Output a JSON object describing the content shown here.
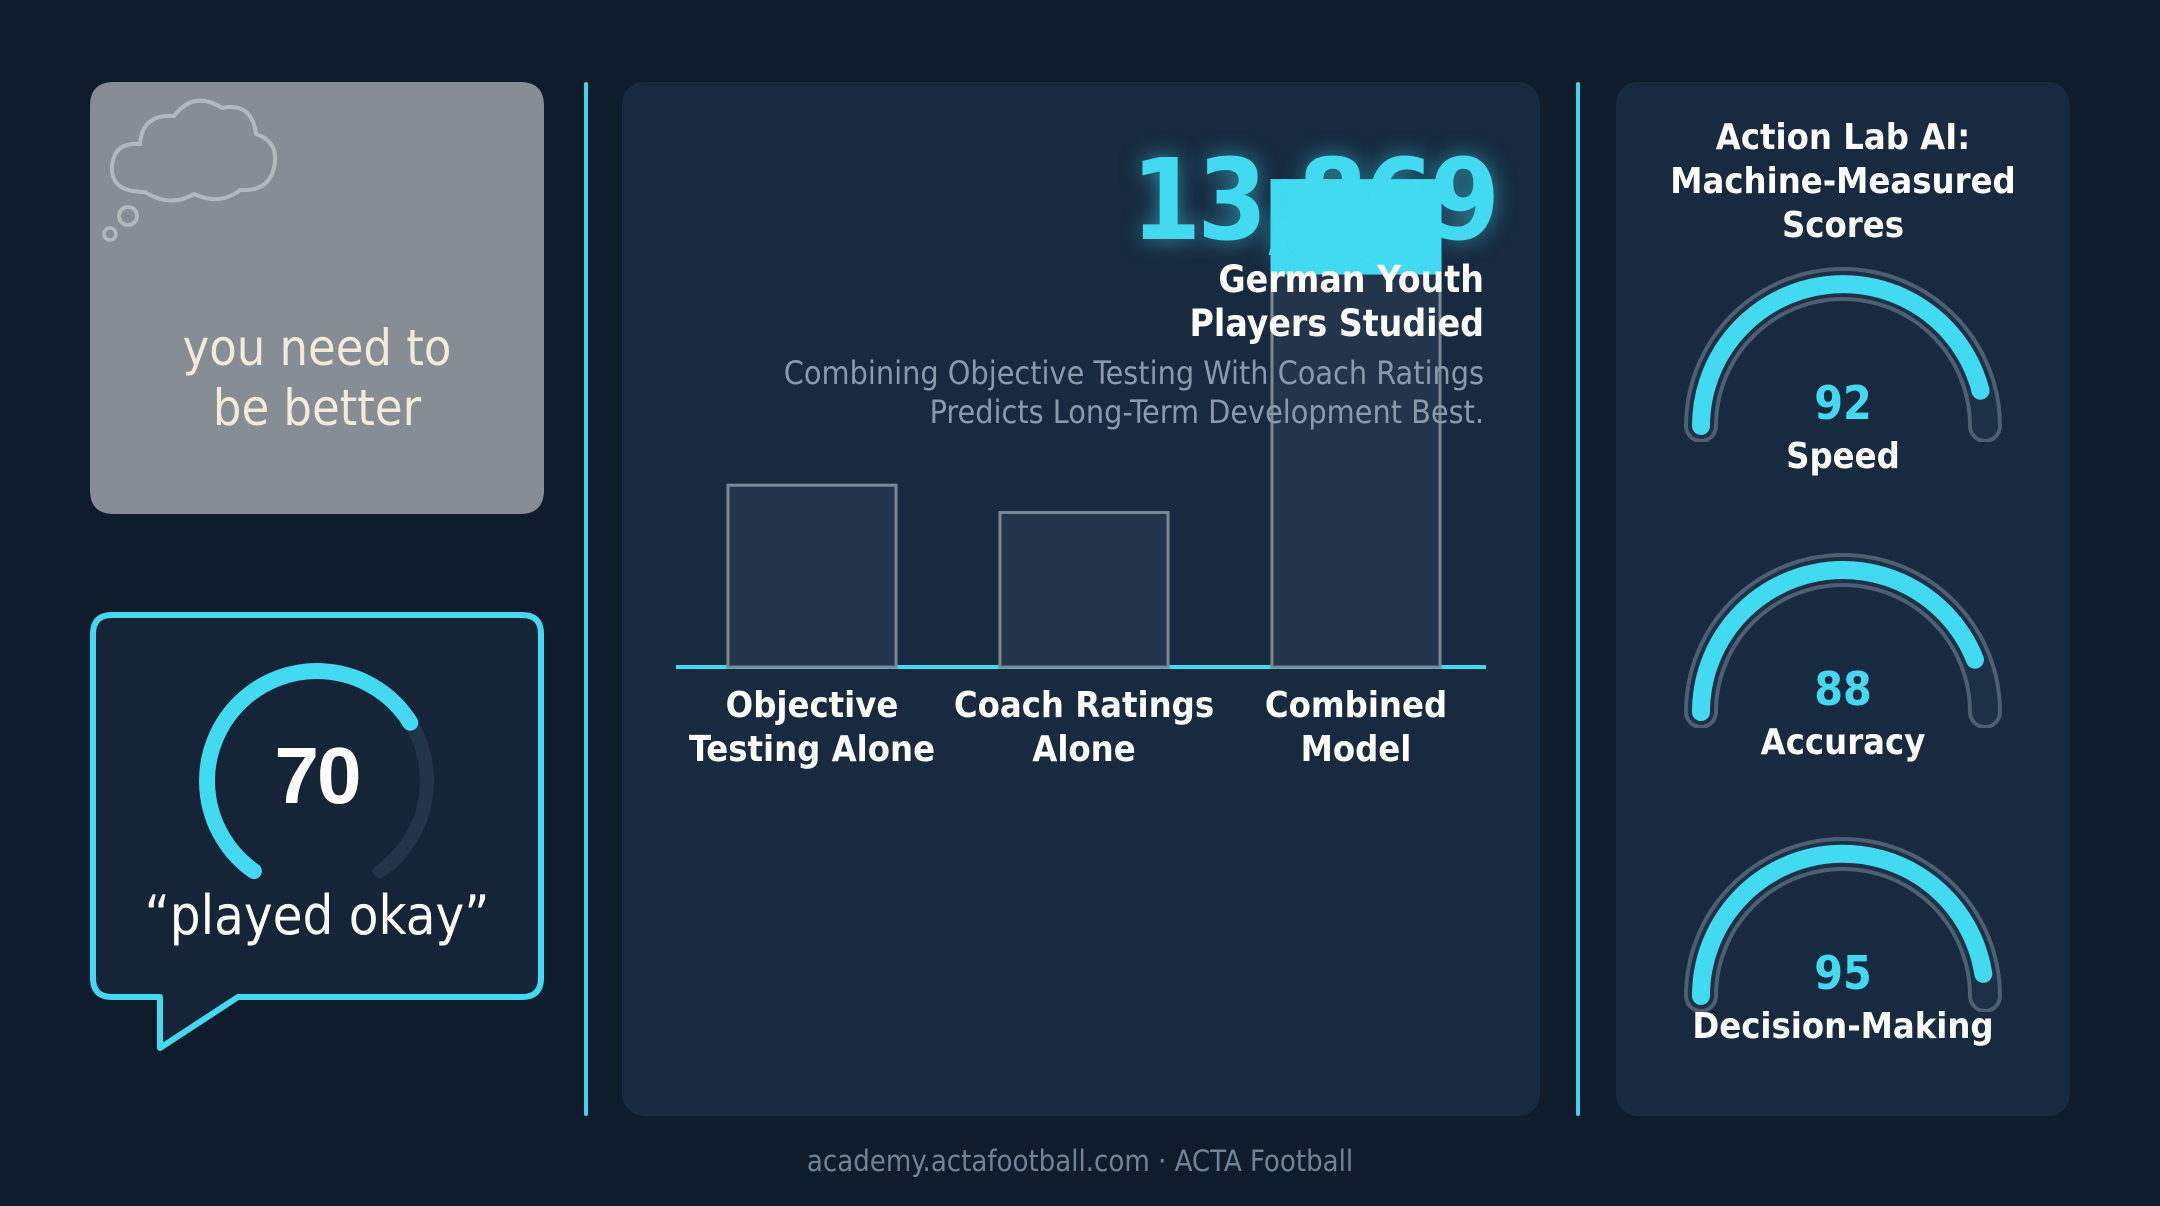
{
  "thought": {
    "text_line1": "you need to",
    "text_line2": "be better",
    "icon": "cloud-thought-icon",
    "color": "#868d94"
  },
  "coach_rating": {
    "value": "70",
    "value_fraction": 0.7,
    "label": "“played okay”",
    "accent": "#42daf0"
  },
  "study": {
    "count": "13,869",
    "subtitle_line1": "German Youth",
    "subtitle_line2": "Players Studied",
    "desc_line1": "Combining Objective Testing With Coach Ratings",
    "desc_line2": "Predicts Long-Term Development Best."
  },
  "chart_data": {
    "type": "bar",
    "categories": [
      [
        "Objective",
        "Testing Alone"
      ],
      [
        "Coach Ratings",
        "Alone"
      ],
      [
        "Combined",
        "Model"
      ]
    ],
    "values": [
      40,
      34,
      107
    ],
    "highlight_top": [
      0,
      0,
      21
    ],
    "ylim": [
      0,
      110
    ],
    "grid": false,
    "title": "",
    "xlabel": "",
    "ylabel": ""
  },
  "ai_scores": {
    "title_line1": "Action Lab AI:",
    "title_line2": "Machine-Measured Scores",
    "max": 100,
    "items": [
      {
        "label": "Speed",
        "value": "92",
        "fraction": 0.92
      },
      {
        "label": "Accuracy",
        "value": "88",
        "fraction": 0.88
      },
      {
        "label": "Decision-Making",
        "value": "95",
        "fraction": 0.95
      }
    ]
  },
  "footer": {
    "text": "academy.actafootball.com · ACTA Football"
  }
}
